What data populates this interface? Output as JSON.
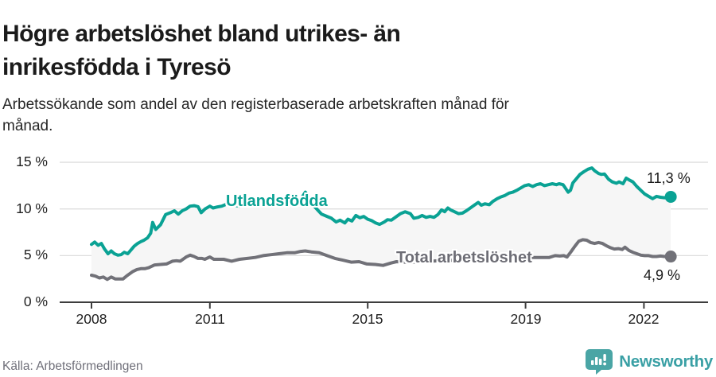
{
  "header": {
    "title_line1": "Högre arbetslöshet bland utrikes- än",
    "title_line2": "inrikesfödda i Tyresö",
    "subtitle_line1": "Arbetssökande som andel av den registerbaserade arbetskraften månad för",
    "subtitle_line2": "månad."
  },
  "footer": {
    "source": "Källa: Arbetsförmedlingen",
    "brand": "Newsworthy"
  },
  "colors": {
    "teal_line": "#0aa294",
    "gray_line": "#717178",
    "gray_label": "#6d6d75",
    "area_fill": "#f6f6f6",
    "grid": "#dedede",
    "axis": "#3d3d3d",
    "brand_teal": "#3aa0a5",
    "logo_fill": "#4aa5a5"
  },
  "chart_data": {
    "type": "line",
    "title": "Högre arbetslöshet bland utrikes- än inrikesfödda i Tyresö",
    "subtitle": "Arbetssökande som andel av den registerbaserade arbetskraften månad för månad.",
    "xlabel": "",
    "ylabel": "",
    "grid": true,
    "legend_position": "inline",
    "xlim": [
      2007.2,
      2023.1
    ],
    "ylim": [
      0,
      15.8
    ],
    "y_ticks": [
      {
        "label": "15 %",
        "value": 15
      },
      {
        "label": "10 %",
        "value": 10
      },
      {
        "label": "5 %",
        "value": 5
      },
      {
        "label": "0 %",
        "value": 0
      }
    ],
    "x_ticks": [
      {
        "label": "2008",
        "year": 2008
      },
      {
        "label": "2011",
        "year": 2011
      },
      {
        "label": "2015",
        "year": 2015
      },
      {
        "label": "2019",
        "year": 2019
      },
      {
        "label": "2022",
        "year": 2022
      }
    ],
    "series": [
      {
        "name": "Utlandsfödda",
        "color": "#0aa294",
        "end_label": "11,3 %",
        "end_value": 11.3,
        "points": [
          [
            2008.0,
            6.2
          ],
          [
            2008.08,
            6.45
          ],
          [
            2008.17,
            6.1
          ],
          [
            2008.25,
            6.3
          ],
          [
            2008.33,
            5.7
          ],
          [
            2008.42,
            5.2
          ],
          [
            2008.5,
            5.5
          ],
          [
            2008.58,
            5.2
          ],
          [
            2008.67,
            5.05
          ],
          [
            2008.75,
            5.1
          ],
          [
            2008.83,
            5.35
          ],
          [
            2008.92,
            5.2
          ],
          [
            2009.0,
            5.6
          ],
          [
            2009.08,
            6.0
          ],
          [
            2009.17,
            6.3
          ],
          [
            2009.25,
            6.5
          ],
          [
            2009.33,
            6.65
          ],
          [
            2009.42,
            6.9
          ],
          [
            2009.5,
            7.4
          ],
          [
            2009.55,
            8.55
          ],
          [
            2009.63,
            7.8
          ],
          [
            2009.75,
            8.3
          ],
          [
            2009.88,
            9.4
          ],
          [
            2010.0,
            9.6
          ],
          [
            2010.1,
            9.8
          ],
          [
            2010.2,
            9.45
          ],
          [
            2010.3,
            9.8
          ],
          [
            2010.4,
            10.0
          ],
          [
            2010.5,
            10.3
          ],
          [
            2010.6,
            10.35
          ],
          [
            2010.7,
            10.25
          ],
          [
            2010.78,
            9.6
          ],
          [
            2010.88,
            10.0
          ],
          [
            2011.0,
            10.3
          ],
          [
            2011.08,
            10.1
          ],
          [
            2011.17,
            10.2
          ],
          [
            2011.3,
            10.3
          ],
          [
            2011.42,
            10.5
          ],
          [
            2011.58,
            10.4
          ],
          [
            2011.75,
            10.3
          ],
          [
            2011.92,
            10.45
          ],
          [
            2012.08,
            10.35
          ],
          [
            2012.25,
            10.5
          ],
          [
            2012.42,
            10.45
          ],
          [
            2012.58,
            10.55
          ],
          [
            2012.75,
            10.5
          ],
          [
            2012.92,
            10.6
          ],
          [
            2013.08,
            10.65
          ],
          [
            2013.25,
            10.7
          ],
          [
            2013.42,
            11.8
          ],
          [
            2013.5,
            11.3
          ],
          [
            2013.62,
            10.4
          ],
          [
            2013.75,
            9.8
          ],
          [
            2013.83,
            9.45
          ],
          [
            2013.97,
            9.2
          ],
          [
            2014.08,
            9.0
          ],
          [
            2014.2,
            8.6
          ],
          [
            2014.3,
            8.8
          ],
          [
            2014.42,
            8.5
          ],
          [
            2014.5,
            8.9
          ],
          [
            2014.6,
            8.7
          ],
          [
            2014.7,
            9.3
          ],
          [
            2014.8,
            9.05
          ],
          [
            2014.9,
            9.2
          ],
          [
            2015.0,
            8.9
          ],
          [
            2015.1,
            8.75
          ],
          [
            2015.2,
            8.5
          ],
          [
            2015.3,
            8.35
          ],
          [
            2015.42,
            8.6
          ],
          [
            2015.5,
            8.85
          ],
          [
            2015.6,
            8.8
          ],
          [
            2015.7,
            9.1
          ],
          [
            2015.83,
            9.5
          ],
          [
            2015.95,
            9.7
          ],
          [
            2016.08,
            9.5
          ],
          [
            2016.17,
            9.0
          ],
          [
            2016.28,
            9.1
          ],
          [
            2016.38,
            9.3
          ],
          [
            2016.48,
            9.1
          ],
          [
            2016.58,
            9.2
          ],
          [
            2016.68,
            9.1
          ],
          [
            2016.78,
            9.4
          ],
          [
            2016.87,
            9.9
          ],
          [
            2016.95,
            9.7
          ],
          [
            2017.03,
            10.1
          ],
          [
            2017.1,
            9.9
          ],
          [
            2017.2,
            9.7
          ],
          [
            2017.3,
            9.5
          ],
          [
            2017.4,
            9.55
          ],
          [
            2017.5,
            9.8
          ],
          [
            2017.6,
            10.1
          ],
          [
            2017.7,
            10.4
          ],
          [
            2017.8,
            10.7
          ],
          [
            2017.88,
            10.4
          ],
          [
            2017.97,
            10.55
          ],
          [
            2018.08,
            10.45
          ],
          [
            2018.17,
            10.8
          ],
          [
            2018.28,
            11.1
          ],
          [
            2018.38,
            11.3
          ],
          [
            2018.48,
            11.45
          ],
          [
            2018.58,
            11.7
          ],
          [
            2018.68,
            11.8
          ],
          [
            2018.78,
            12.0
          ],
          [
            2018.88,
            12.25
          ],
          [
            2018.98,
            12.5
          ],
          [
            2019.08,
            12.6
          ],
          [
            2019.18,
            12.4
          ],
          [
            2019.28,
            12.6
          ],
          [
            2019.38,
            12.7
          ],
          [
            2019.48,
            12.5
          ],
          [
            2019.58,
            12.6
          ],
          [
            2019.68,
            12.7
          ],
          [
            2019.78,
            12.6
          ],
          [
            2019.85,
            12.7
          ],
          [
            2019.95,
            12.6
          ],
          [
            2020.0,
            12.3
          ],
          [
            2020.08,
            11.8
          ],
          [
            2020.14,
            12.0
          ],
          [
            2020.2,
            12.8
          ],
          [
            2020.28,
            13.2
          ],
          [
            2020.38,
            13.7
          ],
          [
            2020.48,
            14.0
          ],
          [
            2020.58,
            14.25
          ],
          [
            2020.68,
            14.4
          ],
          [
            2020.75,
            14.1
          ],
          [
            2020.85,
            13.8
          ],
          [
            2020.92,
            13.7
          ],
          [
            2021.0,
            13.75
          ],
          [
            2021.1,
            13.2
          ],
          [
            2021.2,
            12.9
          ],
          [
            2021.3,
            12.75
          ],
          [
            2021.37,
            12.9
          ],
          [
            2021.47,
            12.7
          ],
          [
            2021.55,
            13.3
          ],
          [
            2021.63,
            13.1
          ],
          [
            2021.72,
            12.9
          ],
          [
            2021.82,
            12.4
          ],
          [
            2021.92,
            12.0
          ],
          [
            2022.02,
            11.6
          ],
          [
            2022.12,
            11.35
          ],
          [
            2022.22,
            11.1
          ],
          [
            2022.32,
            11.35
          ],
          [
            2022.42,
            11.25
          ],
          [
            2022.52,
            11.2
          ],
          [
            2022.6,
            11.25
          ],
          [
            2022.68,
            11.3
          ]
        ]
      },
      {
        "name": "Total arbetslöshet",
        "color": "#717178",
        "end_label": "4,9 %",
        "end_value": 4.9,
        "points": [
          [
            2008.0,
            2.9
          ],
          [
            2008.1,
            2.8
          ],
          [
            2008.2,
            2.6
          ],
          [
            2008.3,
            2.7
          ],
          [
            2008.4,
            2.45
          ],
          [
            2008.5,
            2.7
          ],
          [
            2008.6,
            2.5
          ],
          [
            2008.7,
            2.5
          ],
          [
            2008.8,
            2.5
          ],
          [
            2008.9,
            2.85
          ],
          [
            2009.05,
            3.3
          ],
          [
            2009.15,
            3.5
          ],
          [
            2009.25,
            3.6
          ],
          [
            2009.35,
            3.6
          ],
          [
            2009.45,
            3.7
          ],
          [
            2009.6,
            4.0
          ],
          [
            2009.75,
            4.05
          ],
          [
            2009.9,
            4.1
          ],
          [
            2010.05,
            4.4
          ],
          [
            2010.15,
            4.45
          ],
          [
            2010.25,
            4.4
          ],
          [
            2010.4,
            4.85
          ],
          [
            2010.5,
            5.05
          ],
          [
            2010.6,
            4.9
          ],
          [
            2010.7,
            4.7
          ],
          [
            2010.8,
            4.7
          ],
          [
            2010.87,
            4.6
          ],
          [
            2011.0,
            4.85
          ],
          [
            2011.1,
            4.6
          ],
          [
            2011.2,
            4.6
          ],
          [
            2011.35,
            4.6
          ],
          [
            2011.55,
            4.4
          ],
          [
            2011.75,
            4.6
          ],
          [
            2011.95,
            4.7
          ],
          [
            2012.15,
            4.8
          ],
          [
            2012.35,
            5.0
          ],
          [
            2012.55,
            5.1
          ],
          [
            2012.75,
            5.2
          ],
          [
            2012.95,
            5.3
          ],
          [
            2013.15,
            5.3
          ],
          [
            2013.3,
            5.45
          ],
          [
            2013.42,
            5.5
          ],
          [
            2013.57,
            5.4
          ],
          [
            2013.77,
            5.3
          ],
          [
            2013.97,
            5.0
          ],
          [
            2014.17,
            4.7
          ],
          [
            2014.38,
            4.5
          ],
          [
            2014.58,
            4.3
          ],
          [
            2014.78,
            4.35
          ],
          [
            2014.98,
            4.1
          ],
          [
            2015.19,
            4.05
          ],
          [
            2015.39,
            3.95
          ],
          [
            2015.59,
            4.2
          ],
          [
            2015.73,
            4.35
          ],
          [
            2015.9,
            4.3
          ],
          [
            2016.2,
            4.3
          ],
          [
            2016.6,
            4.4
          ],
          [
            2017.0,
            4.5
          ],
          [
            2017.4,
            4.5
          ],
          [
            2017.8,
            4.6
          ],
          [
            2018.2,
            4.7
          ],
          [
            2018.6,
            4.7
          ],
          [
            2019.0,
            4.8
          ],
          [
            2019.3,
            4.8
          ],
          [
            2019.6,
            4.8
          ],
          [
            2019.75,
            5.0
          ],
          [
            2019.87,
            4.95
          ],
          [
            2019.97,
            5.0
          ],
          [
            2020.05,
            4.85
          ],
          [
            2020.15,
            5.4
          ],
          [
            2020.25,
            6.0
          ],
          [
            2020.35,
            6.55
          ],
          [
            2020.45,
            6.7
          ],
          [
            2020.55,
            6.65
          ],
          [
            2020.65,
            6.4
          ],
          [
            2020.75,
            6.3
          ],
          [
            2020.85,
            6.4
          ],
          [
            2020.95,
            6.3
          ],
          [
            2021.05,
            6.05
          ],
          [
            2021.15,
            5.85
          ],
          [
            2021.25,
            5.7
          ],
          [
            2021.35,
            5.75
          ],
          [
            2021.45,
            5.65
          ],
          [
            2021.52,
            5.9
          ],
          [
            2021.62,
            5.55
          ],
          [
            2021.72,
            5.35
          ],
          [
            2021.82,
            5.2
          ],
          [
            2021.92,
            5.05
          ],
          [
            2022.02,
            5.0
          ],
          [
            2022.12,
            5.0
          ],
          [
            2022.22,
            4.9
          ],
          [
            2022.32,
            4.9
          ],
          [
            2022.42,
            4.95
          ],
          [
            2022.52,
            4.9
          ],
          [
            2022.6,
            4.9
          ],
          [
            2022.68,
            4.9
          ]
        ]
      }
    ]
  }
}
